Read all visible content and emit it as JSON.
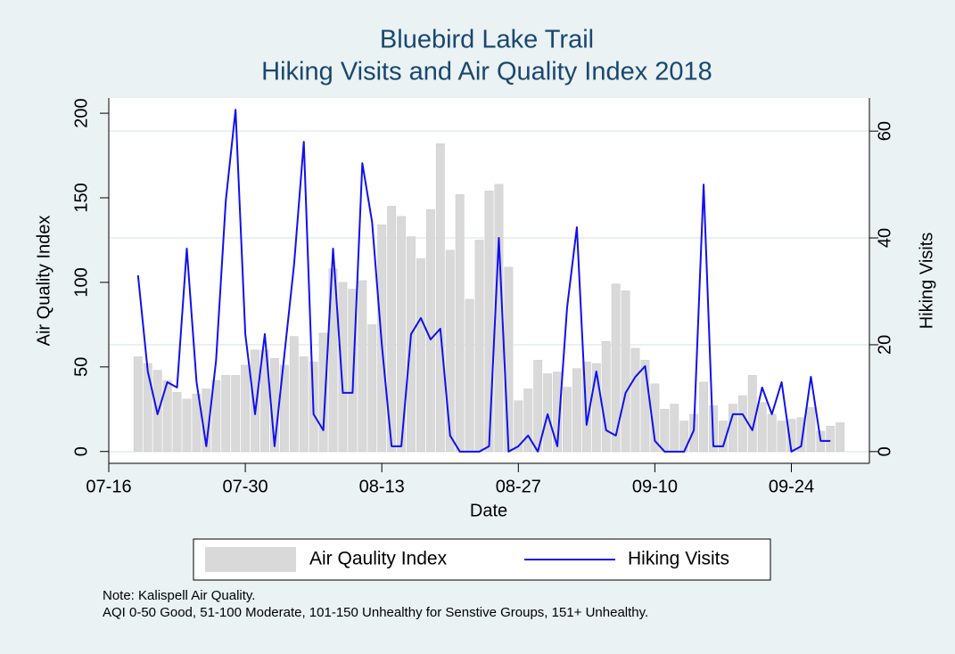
{
  "chart_data": {
    "type": "bar_line",
    "title": [
      "Bluebird Lake Trail",
      "Hiking Visits and Air Quality Index 2018"
    ],
    "xlabel": "Date",
    "ylabel": "Air Quality Index",
    "y2label": "Hiking Visits",
    "note": [
      "Note: Kalispell Air Quality.",
      "AQI 0-50 Good, 51-100 Moderate, 101-150 Unhealthy for Senstive Groups, 151+ Unhealthy."
    ],
    "xlim": [
      "07-16",
      "10-02"
    ],
    "xticks": [
      "07-16",
      "07-30",
      "08-13",
      "08-27",
      "09-10",
      "09-24"
    ],
    "ylim": [
      -7,
      209
    ],
    "yticks": [
      0,
      50,
      100,
      150,
      200
    ],
    "y2lim": [
      -2.2,
      66.2
    ],
    "y2ticks": [
      0,
      20,
      40,
      60
    ],
    "grid": true,
    "grid_axis": "y2",
    "series": [
      {
        "name": "Air Qaulity Index",
        "type": "bar",
        "color": "#d9d9d9",
        "x": [
          "07-19",
          "07-20",
          "07-21",
          "07-22",
          "07-23",
          "07-24",
          "07-25",
          "07-26",
          "07-27",
          "07-28",
          "07-29",
          "07-30",
          "07-31",
          "08-01",
          "08-02",
          "08-03",
          "08-04",
          "08-05",
          "08-06",
          "08-07",
          "08-08",
          "08-09",
          "08-10",
          "08-11",
          "08-12",
          "08-13",
          "08-14",
          "08-15",
          "08-16",
          "08-17",
          "08-18",
          "08-19",
          "08-20",
          "08-21",
          "08-22",
          "08-23",
          "08-24",
          "08-25",
          "08-26",
          "08-27",
          "08-28",
          "08-29",
          "08-30",
          "08-31",
          "09-01",
          "09-02",
          "09-03",
          "09-04",
          "09-05",
          "09-06",
          "09-07",
          "09-08",
          "09-09",
          "09-10",
          "09-11",
          "09-12",
          "09-13",
          "09-14",
          "09-15",
          "09-16",
          "09-17",
          "09-18",
          "09-19",
          "09-20",
          "09-21",
          "09-22",
          "09-23",
          "09-24",
          "09-25",
          "09-26",
          "09-27",
          "09-28",
          "09-29"
        ],
        "values": [
          56,
          52,
          48,
          42,
          35,
          31,
          34,
          37,
          42,
          45,
          45,
          51,
          60,
          60,
          55,
          51,
          68,
          56,
          53,
          70,
          108,
          100,
          96,
          101,
          75,
          134,
          145,
          139,
          127,
          114,
          143,
          182,
          119,
          152,
          90,
          125,
          154,
          158,
          109,
          30,
          37,
          54,
          46,
          47,
          38,
          49,
          53,
          52,
          65,
          99,
          95,
          61,
          54,
          40,
          25,
          28,
          18,
          22,
          41,
          27,
          18,
          28,
          33,
          45,
          29,
          22,
          18,
          19,
          20,
          26,
          12,
          15,
          17
        ]
      },
      {
        "name": "Hiking Visits",
        "type": "line",
        "axis": "y2",
        "color": "#1010ee",
        "x": [
          "07-19",
          "07-20",
          "07-21",
          "07-22",
          "07-23",
          "07-24",
          "07-25",
          "07-26",
          "07-27",
          "07-28",
          "07-29",
          "07-30",
          "07-31",
          "08-01",
          "08-02",
          "08-03",
          "08-04",
          "08-05",
          "08-06",
          "08-07",
          "08-08",
          "08-09",
          "08-10",
          "08-11",
          "08-12",
          "08-13",
          "08-14",
          "08-15",
          "08-16",
          "08-17",
          "08-18",
          "08-19",
          "08-20",
          "08-21",
          "08-22",
          "08-23",
          "08-24",
          "08-25",
          "08-26",
          "08-27",
          "08-28",
          "08-29",
          "08-30",
          "08-31",
          "09-01",
          "09-02",
          "09-03",
          "09-04",
          "09-05",
          "09-06",
          "09-07",
          "09-08",
          "09-09",
          "09-10",
          "09-11",
          "09-12",
          "09-13",
          "09-14",
          "09-15",
          "09-16",
          "09-17",
          "09-18",
          "09-19",
          "09-20",
          "09-21",
          "09-22",
          "09-23",
          "09-24",
          "09-25",
          "09-26",
          "09-27",
          "09-28"
        ],
        "values": [
          33,
          15,
          7,
          13,
          12,
          38,
          13,
          1,
          17,
          47,
          64,
          22,
          7,
          22,
          1,
          18,
          35,
          58,
          7,
          4,
          38,
          11,
          11,
          54,
          43,
          20,
          1,
          1,
          22,
          25,
          21,
          23,
          3,
          0,
          0,
          0,
          1,
          40,
          0,
          1,
          3,
          0,
          7,
          1,
          27,
          42,
          5,
          15,
          4,
          3,
          11,
          14,
          16,
          2,
          0,
          0,
          0,
          4,
          50,
          1,
          1,
          7,
          7,
          4,
          12,
          7,
          13,
          0,
          1,
          14,
          2,
          2
        ]
      }
    ]
  }
}
